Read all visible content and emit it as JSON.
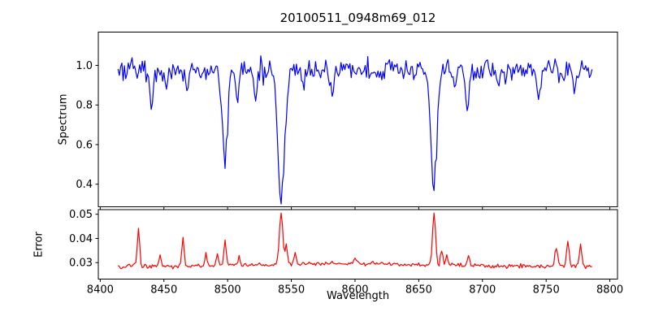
{
  "figure_title": "20100511_0948m69_012",
  "chart_data": [
    {
      "type": "line",
      "panel": "spectrum",
      "title": "20100511_0948m69_012",
      "ylabel": "Spectrum",
      "line_color": "#0000ff",
      "xlim": [
        8398.5,
        8806
      ],
      "ylim": [
        0.286,
        1.168
      ],
      "yticks": [
        1.0,
        0.8,
        0.6,
        0.4
      ],
      "ytick_labels": [
        "1.0",
        "0.8",
        "0.6",
        "0.4"
      ],
      "xticks": [
        8400,
        8450,
        8500,
        8550,
        8600,
        8650,
        8700,
        8750,
        8800
      ],
      "x_start": 8414,
      "x_step": 1.0,
      "n_points": 373,
      "continuum": 0.975,
      "noise_sigma": 0.027,
      "noise_scale_cap": 1.6,
      "clip": [
        0.3,
        1.13
      ],
      "absorption_lines": [
        {
          "center": 8440,
          "depth": 0.17,
          "sigma": 1.3
        },
        {
          "center": 8452,
          "depth": 0.08,
          "sigma": 1.1
        },
        {
          "center": 8468,
          "depth": 0.11,
          "sigma": 1.2
        },
        {
          "center": 8498,
          "depth": 0.5,
          "sigma": 1.9
        },
        {
          "center": 8508,
          "depth": 0.17,
          "sigma": 1.2
        },
        {
          "center": 8522,
          "depth": 0.16,
          "sigma": 1.2
        },
        {
          "center": 8542,
          "depth": 0.64,
          "sigma": 2.6
        },
        {
          "center": 8560,
          "depth": 0.07,
          "sigma": 1.1
        },
        {
          "center": 8582,
          "depth": 0.11,
          "sigma": 1.3
        },
        {
          "center": 8620,
          "depth": 0.07,
          "sigma": 1.1
        },
        {
          "center": 8662,
          "depth": 0.61,
          "sigma": 2.3
        },
        {
          "center": 8678,
          "depth": 0.09,
          "sigma": 1.1
        },
        {
          "center": 8688,
          "depth": 0.19,
          "sigma": 1.3
        },
        {
          "center": 8713,
          "depth": 0.07,
          "sigma": 1.1
        },
        {
          "center": 8744,
          "depth": 0.12,
          "sigma": 1.6
        },
        {
          "center": 8772,
          "depth": 0.08,
          "sigma": 1.1
        }
      ]
    },
    {
      "type": "line",
      "panel": "error",
      "ylabel": "Error",
      "xlabel": "Wavelength",
      "line_color": "#ff0000",
      "xlim": [
        8398.5,
        8806
      ],
      "ylim": [
        0.0232,
        0.0519
      ],
      "yticks": [
        0.05,
        0.04,
        0.03
      ],
      "ytick_labels": [
        "0.05",
        "0.04",
        "0.03"
      ],
      "xticks": [
        8400,
        8450,
        8500,
        8550,
        8600,
        8650,
        8700,
        8750,
        8800
      ],
      "xtick_labels": [
        "8400",
        "8450",
        "8500",
        "8550",
        "8600",
        "8650",
        "8700",
        "8750",
        "8800"
      ],
      "x_start": 8414,
      "x_step": 1.0,
      "n_points": 373,
      "baseline": 0.0285,
      "baseline_hump": {
        "center": 8595,
        "amp": 0.0012,
        "sigma": 55
      },
      "noise_sigma": 0.00045,
      "clip": [
        0.0245,
        0.0505
      ],
      "spikes": [
        {
          "center": 8430,
          "amp": 0.016,
          "sigma": 0.9
        },
        {
          "center": 8447,
          "amp": 0.005,
          "sigma": 0.8
        },
        {
          "center": 8465,
          "amp": 0.0113,
          "sigma": 0.9
        },
        {
          "center": 8483,
          "amp": 0.0055,
          "sigma": 0.8
        },
        {
          "center": 8492,
          "amp": 0.005,
          "sigma": 0.8
        },
        {
          "center": 8498,
          "amp": 0.0105,
          "sigma": 0.9
        },
        {
          "center": 8509,
          "amp": 0.0035,
          "sigma": 0.8
        },
        {
          "center": 8542,
          "amp": 0.021,
          "sigma": 1.3
        },
        {
          "center": 8546,
          "amp": 0.008,
          "sigma": 0.9
        },
        {
          "center": 8553,
          "amp": 0.005,
          "sigma": 0.8
        },
        {
          "center": 8600,
          "amp": 0.0018,
          "sigma": 1.0
        },
        {
          "center": 8662,
          "amp": 0.0215,
          "sigma": 1.2
        },
        {
          "center": 8668,
          "amp": 0.006,
          "sigma": 0.9
        },
        {
          "center": 8672,
          "amp": 0.004,
          "sigma": 0.8
        },
        {
          "center": 8689,
          "amp": 0.004,
          "sigma": 0.9
        },
        {
          "center": 8758,
          "amp": 0.0085,
          "sigma": 1.0
        },
        {
          "center": 8767,
          "amp": 0.011,
          "sigma": 0.9
        },
        {
          "center": 8777,
          "amp": 0.009,
          "sigma": 1.0
        }
      ]
    }
  ]
}
